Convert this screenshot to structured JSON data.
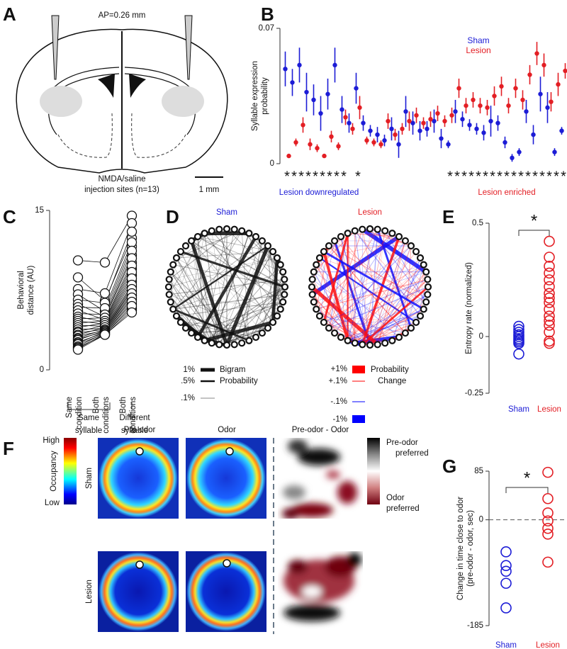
{
  "panel_labels": [
    "A",
    "B",
    "C",
    "D",
    "E",
    "F",
    "G"
  ],
  "panel_a": {
    "title": "AP=0.26 mm",
    "caption": [
      "NMDA/saline",
      "injection sites (n=13)"
    ],
    "scale_bar": "1 mm"
  },
  "panel_d": {
    "sham_title": "Sham",
    "lesion_title": "Lesion",
    "sham_legend": {
      "entries": [
        "1%",
        ".5%",
        ".1%"
      ],
      "label": [
        "Bigram",
        "Probability"
      ]
    },
    "lesion_legend": {
      "entries": [
        "+1%",
        "+.1%",
        "-.1%",
        "-1%"
      ],
      "label": [
        "Probability",
        "Change"
      ]
    }
  },
  "panel_f": {
    "colorbar": {
      "high": "High",
      "label": "Occupancy",
      "low": "Low"
    },
    "columns": [
      "Pre-odor",
      "Odor",
      "Pre-odor - Odor"
    ],
    "rows": [
      "Sham",
      "Lesion"
    ],
    "diff_colorbar": {
      "top": [
        "Pre-odor",
        "preferred"
      ],
      "bottom": [
        "Odor",
        "preferred"
      ]
    }
  },
  "chart_data": [
    {
      "type": "errorbar",
      "ylabel": [
        "Syllable expression",
        "probability"
      ],
      "ylim": [
        0,
        0.07
      ],
      "yticks": [
        0,
        0.07
      ],
      "legend": "upper right",
      "categories": [
        null,
        null,
        null,
        null,
        null,
        null,
        null,
        null,
        null,
        null,
        null,
        null,
        null,
        null,
        null,
        null,
        null,
        null,
        null,
        null,
        null,
        null,
        null,
        null,
        null,
        null,
        null,
        null,
        null,
        null,
        null,
        null,
        null,
        null,
        null,
        null,
        null,
        null,
        null,
        null
      ],
      "series": [
        {
          "name": "Sham",
          "color": "#1c1cd6",
          "values": [
            0.049,
            0.042,
            0.051,
            0.037,
            0.033,
            0.026,
            0.036,
            0.051,
            0.028,
            0.021,
            0.039,
            0.021,
            0.017,
            0.015,
            0.012,
            0.018,
            0.01,
            0.027,
            0.021,
            0.017,
            0.018,
            0.022,
            0.013,
            0.01,
            0.027,
            0.023,
            0.02,
            0.018,
            0.016,
            0.022,
            0.021,
            0.011,
            0.003,
            0.006,
            0.027,
            0.015,
            0.036,
            0.029,
            0.006,
            0.017
          ],
          "errors": [
            0.009,
            0.007,
            0.009,
            0.01,
            0.008,
            0.009,
            0.008,
            0.009,
            0.007,
            0.005,
            0.008,
            0.004,
            0.003,
            0.004,
            0.003,
            0.006,
            0.007,
            0.008,
            0.006,
            0.005,
            0.004,
            0.006,
            0.005,
            0.002,
            0.006,
            0.004,
            0.003,
            0.003,
            0.004,
            0.008,
            0.004,
            0.003,
            0.002,
            0.002,
            0.006,
            0.005,
            0.009,
            0.008,
            0.002,
            0.002
          ]
        },
        {
          "name": "Lesion",
          "color": "#e31e24",
          "values": [
            0.004,
            0.011,
            0.02,
            0.01,
            0.008,
            0.004,
            0.014,
            0.009,
            0.024,
            0.018,
            0.029,
            0.012,
            0.011,
            0.01,
            0.022,
            0.015,
            0.018,
            0.022,
            0.025,
            0.021,
            0.023,
            0.026,
            0.022,
            0.025,
            0.039,
            0.03,
            0.033,
            0.03,
            0.029,
            0.035,
            0.04,
            0.03,
            0.039,
            0.033,
            0.046,
            0.057,
            0.051,
            0.032,
            0.041,
            0.048
          ],
          "errors": [
            0.001,
            0.002,
            0.004,
            0.003,
            0.002,
            0.001,
            0.003,
            0.002,
            0.004,
            0.003,
            0.006,
            0.002,
            0.002,
            0.002,
            0.004,
            0.003,
            0.003,
            0.005,
            0.004,
            0.003,
            0.004,
            0.004,
            0.003,
            0.004,
            0.005,
            0.004,
            0.004,
            0.004,
            0.004,
            0.005,
            0.005,
            0.004,
            0.005,
            0.005,
            0.005,
            0.006,
            0.006,
            0.005,
            0.006,
            0.004
          ]
        }
      ],
      "significance": [
        "*",
        "*",
        "*",
        "*",
        "*",
        "*",
        "*",
        "*",
        "*",
        null,
        "*",
        null,
        null,
        null,
        null,
        null,
        null,
        null,
        null,
        null,
        null,
        null,
        null,
        "*",
        "*",
        "*",
        "*",
        "*",
        "*",
        "*",
        "*",
        "*",
        "*",
        "*",
        "*",
        "*",
        "*",
        "*",
        "*",
        "*"
      ],
      "groups": [
        {
          "label": "Lesion downregulated",
          "color": "#1c1cd6"
        },
        {
          "label": "Lesion enriched",
          "color": "#e31e24"
        }
      ]
    },
    {
      "type": "paired",
      "ylabel": [
        "Behavioral",
        "distance (AU)"
      ],
      "ylim": [
        0,
        15
      ],
      "yticks": [
        0,
        15
      ],
      "categories": [
        [
          "Same",
          "condition"
        ],
        [
          "Both",
          "conditions"
        ],
        [
          "Both",
          "conditions"
        ]
      ],
      "groups": [
        [
          "Same",
          "syllable"
        ],
        [
          "Different",
          "syllable"
        ]
      ],
      "columns": [
        [
          10.3,
          8.7,
          7.6,
          7.1,
          6.6,
          6.2,
          5.9,
          5.6,
          5.3,
          5.0,
          4.8,
          4.6,
          4.4,
          4.2,
          4.0,
          3.8,
          3.6,
          3.5,
          3.3,
          3.2,
          3.0,
          2.9,
          2.8,
          2.6,
          2.5,
          2.4,
          2.2,
          2.1,
          2.0,
          1.9
        ],
        [
          10.1,
          6.5,
          7.2,
          5.5,
          6.3,
          5.0,
          5.8,
          4.7,
          5.2,
          4.5,
          4.9,
          4.3,
          4.6,
          4.1,
          4.4,
          3.9,
          4.2,
          3.8,
          4.0,
          3.7,
          3.8,
          3.6,
          3.7,
          3.5,
          3.6,
          3.4,
          3.5,
          3.3,
          3.4,
          3.3
        ],
        [
          14.5,
          12.4,
          13.8,
          11.6,
          13.0,
          10.8,
          12.0,
          10.1,
          11.2,
          9.5,
          10.5,
          8.9,
          9.8,
          8.3,
          9.2,
          7.8,
          8.6,
          7.4,
          8.0,
          7.0,
          7.6,
          6.6,
          7.2,
          6.2,
          6.8,
          5.8,
          6.4,
          5.6,
          6.0,
          5.4
        ]
      ]
    },
    {
      "type": "strip",
      "ylabel": [
        "Entropy rate (normalized)"
      ],
      "ylim": [
        -0.25,
        0.5
      ],
      "yticks": [
        -0.25,
        0,
        0.5
      ],
      "categories": [
        "Sham",
        "Lesion"
      ],
      "colors": [
        "#1c1cd6",
        "#e31e24"
      ],
      "significance": "*",
      "values": [
        [
          0.045,
          0.031,
          0.019,
          0.008,
          0,
          -0.009,
          -0.016,
          -0.023,
          -0.03,
          -0.077
        ],
        [
          0.42,
          0.35,
          0.31,
          0.28,
          0.25,
          0.22,
          0.19,
          0.17,
          0.15,
          0.12,
          0.09,
          0.07,
          0.05,
          0.02,
          -0.02,
          -0.03
        ]
      ]
    },
    {
      "type": "strip",
      "ylabel": [
        "Change in time close to odor",
        "(pre-odor - odor, sec)"
      ],
      "ylim": [
        -185,
        85
      ],
      "yticks": [
        -185,
        0,
        85
      ],
      "categories": [
        "Sham",
        "Lesion"
      ],
      "colors": [
        "#1c1cd6",
        "#e31e24"
      ],
      "significance": "*",
      "zero_line": true,
      "values": [
        [
          -56,
          -80,
          -90,
          -111,
          -154
        ],
        [
          83,
          37,
          12,
          -2,
          -15,
          -25,
          -74
        ]
      ]
    }
  ]
}
